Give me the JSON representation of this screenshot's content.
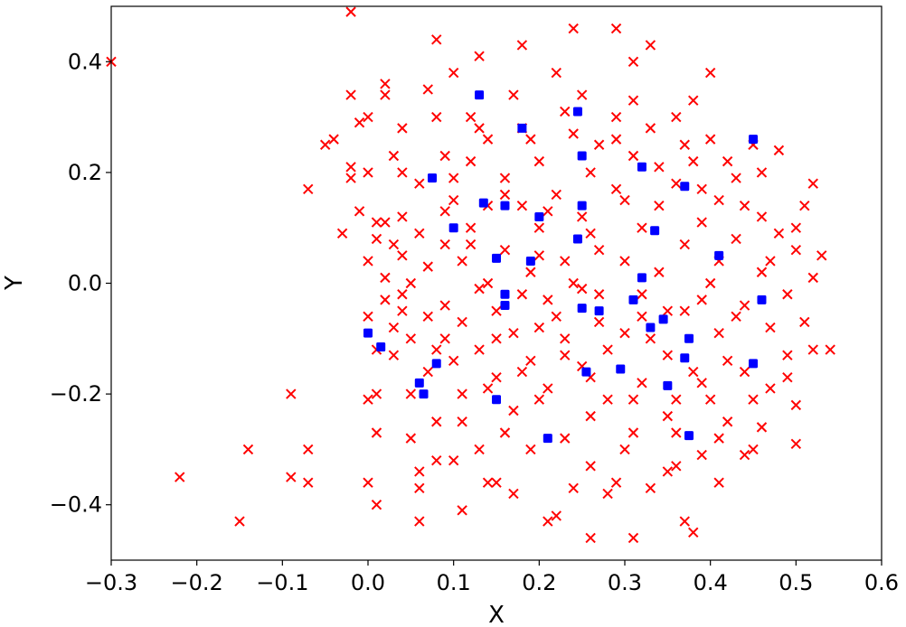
{
  "chart_data": {
    "type": "scatter",
    "xlabel": "X",
    "ylabel": "Y",
    "xlim": [
      -0.3,
      0.6
    ],
    "ylim": [
      -0.5,
      0.5
    ],
    "xticks": [
      -0.3,
      -0.2,
      -0.1,
      0.0,
      0.1,
      0.2,
      0.3,
      0.4,
      0.5,
      0.6
    ],
    "yticks": [
      -0.4,
      -0.2,
      0.0,
      0.2,
      0.4
    ],
    "xtick_labels": [
      "−0.3",
      "−0.2",
      "−0.1",
      "0.0",
      "0.1",
      "0.2",
      "0.3",
      "0.4",
      "0.5",
      "0.6"
    ],
    "ytick_labels": [
      "−0.4",
      "−0.2",
      "0.0",
      "0.2",
      "0.4"
    ],
    "grid": false,
    "series": [
      {
        "marker": "x",
        "color": "#ff0000",
        "points": [
          [
            -0.3,
            0.4
          ],
          [
            -0.02,
            0.49
          ],
          [
            -0.22,
            -0.35
          ],
          [
            -0.15,
            -0.43
          ],
          [
            -0.14,
            -0.3
          ],
          [
            -0.09,
            -0.2
          ],
          [
            -0.09,
            -0.35
          ],
          [
            -0.07,
            -0.3
          ],
          [
            -0.07,
            -0.36
          ],
          [
            -0.07,
            0.17
          ],
          [
            -0.05,
            0.25
          ],
          [
            -0.04,
            0.26
          ],
          [
            -0.03,
            0.09
          ],
          [
            -0.02,
            0.34
          ],
          [
            -0.02,
            0.19
          ],
          [
            -0.02,
            0.21
          ],
          [
            -0.01,
            0.29
          ],
          [
            0.0,
            0.3
          ],
          [
            0.0,
            0.2
          ],
          [
            0.0,
            0.04
          ],
          [
            0.0,
            -0.06
          ],
          [
            0.0,
            -0.21
          ],
          [
            0.0,
            -0.36
          ],
          [
            0.01,
            0.11
          ],
          [
            0.01,
            0.08
          ],
          [
            0.01,
            -0.12
          ],
          [
            0.01,
            -0.2
          ],
          [
            0.01,
            -0.27
          ],
          [
            0.01,
            -0.4
          ],
          [
            0.02,
            0.36
          ],
          [
            0.02,
            0.34
          ],
          [
            0.02,
            0.11
          ],
          [
            0.02,
            0.01
          ],
          [
            0.02,
            -0.03
          ],
          [
            0.03,
            0.07
          ],
          [
            0.03,
            -0.08
          ],
          [
            0.03,
            -0.13
          ],
          [
            0.04,
            0.28
          ],
          [
            0.04,
            0.2
          ],
          [
            0.04,
            0.12
          ],
          [
            0.04,
            0.05
          ],
          [
            0.04,
            -0.02
          ],
          [
            0.05,
            -0.1
          ],
          [
            0.05,
            -0.2
          ],
          [
            0.05,
            -0.28
          ],
          [
            0.06,
            -0.34
          ],
          [
            0.06,
            -0.43
          ],
          [
            0.06,
            0.18
          ],
          [
            0.07,
            0.35
          ],
          [
            0.07,
            0.03
          ],
          [
            0.07,
            -0.06
          ],
          [
            0.08,
            -0.12
          ],
          [
            0.08,
            -0.25
          ],
          [
            0.08,
            0.44
          ],
          [
            0.09,
            0.23
          ],
          [
            0.09,
            0.07
          ],
          [
            0.09,
            -0.04
          ],
          [
            0.1,
            -0.14
          ],
          [
            0.1,
            -0.32
          ],
          [
            0.1,
            0.38
          ],
          [
            0.1,
            0.15
          ],
          [
            0.11,
            0.04
          ],
          [
            0.11,
            -0.07
          ],
          [
            0.11,
            -0.2
          ],
          [
            0.11,
            -0.41
          ],
          [
            0.12,
            0.3
          ],
          [
            0.12,
            0.22
          ],
          [
            0.12,
            0.1
          ],
          [
            0.13,
            -0.01
          ],
          [
            0.13,
            -0.12
          ],
          [
            0.13,
            0.41
          ],
          [
            0.14,
            0.26
          ],
          [
            0.14,
            0.14
          ],
          [
            0.15,
            -0.05
          ],
          [
            0.15,
            -0.17
          ],
          [
            0.15,
            -0.36
          ],
          [
            0.16,
            0.19
          ],
          [
            0.16,
            0.06
          ],
          [
            0.17,
            -0.09
          ],
          [
            0.17,
            -0.23
          ],
          [
            0.18,
            0.43
          ],
          [
            0.18,
            0.28
          ],
          [
            0.18,
            0.14
          ],
          [
            0.19,
            0.02
          ],
          [
            0.19,
            -0.14
          ],
          [
            0.19,
            -0.3
          ],
          [
            0.2,
            0.22
          ],
          [
            0.2,
            0.1
          ],
          [
            0.21,
            -0.03
          ],
          [
            0.21,
            -0.19
          ],
          [
            0.21,
            -0.43
          ],
          [
            0.22,
            0.38
          ],
          [
            0.22,
            0.16
          ],
          [
            0.23,
            0.04
          ],
          [
            0.23,
            -0.1
          ],
          [
            0.23,
            -0.28
          ],
          [
            0.24,
            0.46
          ],
          [
            0.24,
            0.27
          ],
          [
            0.25,
            0.12
          ],
          [
            0.25,
            -0.01
          ],
          [
            0.25,
            -0.15
          ],
          [
            0.26,
            -0.33
          ],
          [
            0.26,
            0.2
          ],
          [
            0.27,
            0.06
          ],
          [
            0.27,
            -0.07
          ],
          [
            0.28,
            -0.21
          ],
          [
            0.28,
            -0.38
          ],
          [
            0.29,
            0.46
          ],
          [
            0.29,
            0.3
          ],
          [
            0.29,
            0.17
          ],
          [
            0.3,
            0.04
          ],
          [
            0.3,
            -0.09
          ],
          [
            0.3,
            -0.3
          ],
          [
            0.31,
            0.4
          ],
          [
            0.31,
            0.23
          ],
          [
            0.32,
            0.1
          ],
          [
            0.32,
            -0.02
          ],
          [
            0.32,
            -0.18
          ],
          [
            0.33,
            0.43
          ],
          [
            0.33,
            0.28
          ],
          [
            0.33,
            -0.37
          ],
          [
            0.34,
            0.14
          ],
          [
            0.34,
            0.02
          ],
          [
            0.35,
            -0.13
          ],
          [
            0.35,
            -0.24
          ],
          [
            0.36,
            0.3
          ],
          [
            0.36,
            0.18
          ],
          [
            0.37,
            0.07
          ],
          [
            0.37,
            -0.05
          ],
          [
            0.37,
            -0.43
          ],
          [
            0.38,
            0.33
          ],
          [
            0.38,
            0.22
          ],
          [
            0.39,
            0.11
          ],
          [
            0.39,
            -0.03
          ],
          [
            0.39,
            -0.18
          ],
          [
            0.39,
            -0.31
          ],
          [
            0.4,
            0.38
          ],
          [
            0.4,
            0.26
          ],
          [
            0.41,
            0.15
          ],
          [
            0.41,
            0.04
          ],
          [
            0.41,
            -0.09
          ],
          [
            0.42,
            -0.25
          ],
          [
            0.43,
            0.19
          ],
          [
            0.43,
            0.08
          ],
          [
            0.44,
            -0.04
          ],
          [
            0.44,
            -0.16
          ],
          [
            0.45,
            0.25
          ],
          [
            0.45,
            -0.3
          ],
          [
            0.46,
            0.12
          ],
          [
            0.46,
            0.02
          ],
          [
            0.47,
            -0.08
          ],
          [
            0.47,
            -0.19
          ],
          [
            0.48,
            0.24
          ],
          [
            0.48,
            0.09
          ],
          [
            0.49,
            -0.02
          ],
          [
            0.49,
            -0.13
          ],
          [
            0.5,
            -0.22
          ],
          [
            0.5,
            0.06
          ],
          [
            0.51,
            0.14
          ],
          [
            0.51,
            -0.07
          ],
          [
            0.52,
            0.18
          ],
          [
            0.52,
            0.01
          ],
          [
            0.52,
            -0.12
          ],
          [
            0.53,
            0.05
          ],
          [
            0.54,
            -0.12
          ],
          [
            0.35,
            -0.34
          ],
          [
            0.36,
            -0.27
          ],
          [
            0.31,
            -0.46
          ],
          [
            0.26,
            -0.46
          ],
          [
            0.29,
            -0.36
          ],
          [
            0.24,
            -0.37
          ],
          [
            0.22,
            -0.42
          ],
          [
            0.17,
            -0.38
          ],
          [
            0.14,
            -0.36
          ],
          [
            0.13,
            -0.3
          ],
          [
            0.08,
            -0.32
          ],
          [
            0.06,
            -0.37
          ],
          [
            0.38,
            -0.45
          ],
          [
            0.41,
            -0.28
          ],
          [
            0.44,
            -0.31
          ],
          [
            0.27,
            0.25
          ],
          [
            0.2,
            0.05
          ],
          [
            0.15,
            -0.1
          ],
          [
            0.3,
            0.15
          ],
          [
            0.35,
            -0.05
          ],
          [
            0.4,
            0.0
          ],
          [
            0.42,
            -0.14
          ],
          [
            0.28,
            -0.12
          ],
          [
            0.22,
            -0.06
          ],
          [
            0.18,
            -0.02
          ],
          [
            0.12,
            0.07
          ],
          [
            0.24,
            0.0
          ],
          [
            0.33,
            -0.1
          ],
          [
            0.38,
            -0.16
          ],
          [
            0.43,
            -0.06
          ],
          [
            0.47,
            0.04
          ],
          [
            0.26,
            0.09
          ],
          [
            0.21,
            0.13
          ],
          [
            0.16,
            0.16
          ],
          [
            0.09,
            0.13
          ],
          [
            0.06,
            0.09
          ],
          [
            0.04,
            -0.05
          ],
          [
            0.07,
            -0.16
          ],
          [
            0.11,
            -0.25
          ],
          [
            0.16,
            -0.27
          ],
          [
            0.2,
            -0.21
          ],
          [
            0.26,
            -0.24
          ],
          [
            0.31,
            -0.21
          ],
          [
            0.36,
            -0.21
          ],
          [
            0.4,
            -0.21
          ],
          [
            0.45,
            -0.21
          ],
          [
            0.49,
            -0.17
          ],
          [
            0.5,
            0.1
          ],
          [
            0.44,
            0.14
          ],
          [
            0.39,
            0.17
          ],
          [
            0.34,
            0.21
          ],
          [
            0.29,
            0.26
          ],
          [
            0.23,
            0.31
          ],
          [
            0.17,
            0.34
          ],
          [
            0.13,
            0.28
          ],
          [
            0.08,
            0.3
          ],
          [
            0.03,
            0.23
          ],
          [
            -0.01,
            0.13
          ],
          [
            0.1,
            0.19
          ],
          [
            0.19,
            0.26
          ],
          [
            0.25,
            0.34
          ],
          [
            0.31,
            0.33
          ],
          [
            0.37,
            0.25
          ],
          [
            0.42,
            0.22
          ],
          [
            0.46,
            0.2
          ],
          [
            0.32,
            -0.06
          ],
          [
            0.27,
            -0.02
          ],
          [
            0.23,
            -0.13
          ],
          [
            0.18,
            -0.16
          ],
          [
            0.14,
            -0.19
          ],
          [
            0.09,
            -0.1
          ],
          [
            0.05,
            0.0
          ],
          [
            0.14,
            0.0
          ],
          [
            0.2,
            -0.08
          ],
          [
            0.26,
            -0.17
          ],
          [
            0.31,
            -0.27
          ],
          [
            0.36,
            -0.33
          ],
          [
            0.41,
            -0.36
          ],
          [
            0.46,
            -0.26
          ],
          [
            0.5,
            -0.29
          ]
        ]
      },
      {
        "marker": "square",
        "color": "#0000ff",
        "points": [
          [
            0.13,
            0.34
          ],
          [
            0.18,
            0.28
          ],
          [
            0.245,
            0.31
          ],
          [
            0.45,
            0.26
          ],
          [
            0.25,
            0.23
          ],
          [
            0.32,
            0.21
          ],
          [
            0.075,
            0.19
          ],
          [
            0.37,
            0.175
          ],
          [
            0.135,
            0.145
          ],
          [
            0.16,
            0.14
          ],
          [
            0.25,
            0.14
          ],
          [
            0.2,
            0.12
          ],
          [
            0.1,
            0.1
          ],
          [
            0.335,
            0.095
          ],
          [
            0.245,
            0.08
          ],
          [
            0.41,
            0.05
          ],
          [
            0.15,
            0.045
          ],
          [
            0.19,
            0.04
          ],
          [
            0.32,
            0.01
          ],
          [
            0.16,
            -0.02
          ],
          [
            0.46,
            -0.03
          ],
          [
            0.31,
            -0.03
          ],
          [
            0.16,
            -0.04
          ],
          [
            0.25,
            -0.045
          ],
          [
            0.27,
            -0.05
          ],
          [
            0.345,
            -0.065
          ],
          [
            0.33,
            -0.08
          ],
          [
            0.0,
            -0.09
          ],
          [
            0.375,
            -0.1
          ],
          [
            0.015,
            -0.115
          ],
          [
            0.37,
            -0.135
          ],
          [
            0.08,
            -0.145
          ],
          [
            0.45,
            -0.145
          ],
          [
            0.295,
            -0.155
          ],
          [
            0.255,
            -0.16
          ],
          [
            0.06,
            -0.18
          ],
          [
            0.35,
            -0.185
          ],
          [
            0.065,
            -0.2
          ],
          [
            0.15,
            -0.21
          ],
          [
            0.375,
            -0.275
          ],
          [
            0.21,
            -0.28
          ]
        ]
      }
    ]
  }
}
